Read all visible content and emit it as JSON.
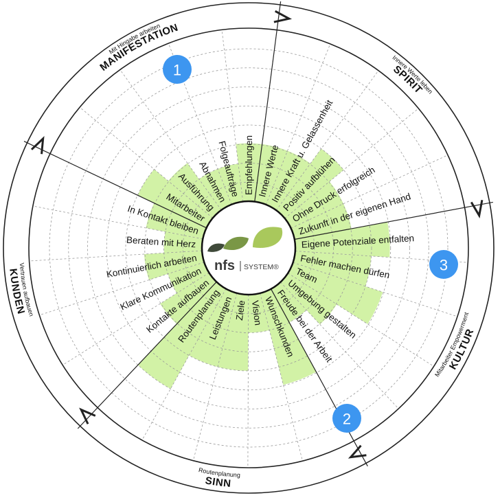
{
  "sections": [
    {
      "title": "MANIFESTATION",
      "subtitle": "Mit Hingabe arbeiten"
    },
    {
      "title": "SPIRIT",
      "subtitle": "Innere Werte leben"
    },
    {
      "title": "KULTUR",
      "subtitle": "Mitarbeiter Empowerment"
    },
    {
      "title": "SINN",
      "subtitle": "Routenplanung"
    },
    {
      "title": "KUNDEN",
      "subtitle": "Vertrauen aufbauen"
    }
  ],
  "segments": [
    {
      "label": "Empfehlungen",
      "value": 0.38
    },
    {
      "label": "Innere Werte",
      "value": 0.38
    },
    {
      "label": "Innere Kraft u. Gelassenheit",
      "value": 0.38
    },
    {
      "label": "Positiv aufblühen",
      "value": 0.5
    },
    {
      "label": "Ohne Druck erfolgreich",
      "value": 0.38
    },
    {
      "label": "Zukunft in der eigenen Hand",
      "value": 0.38
    },
    {
      "label": "Eigene Potenziale entfalten",
      "value": 0.62
    },
    {
      "label": "Fehler machen dürfen",
      "value": 0.5
    },
    {
      "label": "Team",
      "value": 0.62
    },
    {
      "label": "Umgebung gestalten",
      "value": 0.38
    },
    {
      "label": "Freude bei der Arbeit",
      "value": 0.25
    },
    {
      "label": "Wunschkunden",
      "value": 0.62
    },
    {
      "label": "Vision",
      "value": 0.25
    },
    {
      "label": "Ziele",
      "value": 0.5
    },
    {
      "label": "Leistungen",
      "value": 0.5
    },
    {
      "label": "Routenplanung",
      "value": 0.75
    },
    {
      "label": "Kontakte aufbauen",
      "value": 0.38
    },
    {
      "label": "Klare Kommunikation",
      "value": 0.25
    },
    {
      "label": "Kontinuierlich arbeiten",
      "value": 0.38
    },
    {
      "label": "Beraten mit Herz",
      "value": 0.25
    },
    {
      "label": "In Kontakt bleiben",
      "value": 0.38
    },
    {
      "label": "Mitarbeiter",
      "value": 0.5
    },
    {
      "label": "Ausführung",
      "value": 0.38
    },
    {
      "label": "Abnahmen",
      "value": 0.25
    },
    {
      "label": "Folgeaufträge",
      "value": 0.25
    }
  ],
  "logo": {
    "brand": "nfs",
    "system": "SYSTEM®"
  },
  "badges": [
    "1",
    "2",
    "3"
  ],
  "colors": {
    "fill": "#d2f2a6",
    "grid": "#9a9a9a",
    "badge": "#3d96f0",
    "ring": "#222222"
  }
}
